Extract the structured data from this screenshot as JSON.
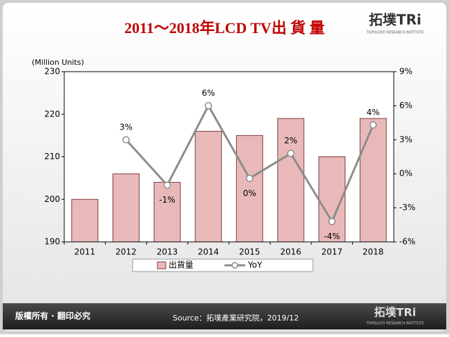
{
  "chart_data": {
    "type": "bar",
    "title": "2011～2018年LCD TV出 貨 量",
    "y_label": "(Million Units)",
    "categories": [
      "2011",
      "2012",
      "2013",
      "2014",
      "2015",
      "2016",
      "2017",
      "2018"
    ],
    "series": [
      {
        "name": "出貨量",
        "type": "bar",
        "color": "#e9b9b9",
        "values": [
          200,
          206,
          204,
          216,
          215,
          219,
          210,
          219
        ]
      },
      {
        "name": "YoY",
        "type": "line",
        "axis": "y2",
        "color": "#8c8c8c",
        "values": [
          null,
          3,
          -1,
          6,
          -0.4,
          1.8,
          -4.2,
          4.3
        ],
        "value_labels": [
          null,
          "3%",
          "-1%",
          "6%",
          "0%",
          "2%",
          "-4%",
          "4%"
        ]
      }
    ],
    "ylim": [
      190,
      230
    ],
    "yticks": [
      190,
      200,
      210,
      220,
      230
    ],
    "y2lim": [
      -6,
      9
    ],
    "y2ticks": [
      {
        "value": -6,
        "label": "-6%"
      },
      {
        "value": -3,
        "label": "-3%"
      },
      {
        "value": 0,
        "label": "0%"
      },
      {
        "value": 3,
        "label": "3%"
      },
      {
        "value": 6,
        "label": "6%"
      },
      {
        "value": 9,
        "label": "9%"
      }
    ]
  },
  "footer": {
    "copyright": "版權所有 · 翻印必究",
    "source": "Source：拓墣產業研究院，2019/12"
  },
  "logo": {
    "name": "拓墣TRi",
    "subtitle": "TOPOLOGY RESEARCH INSTITUTE"
  }
}
